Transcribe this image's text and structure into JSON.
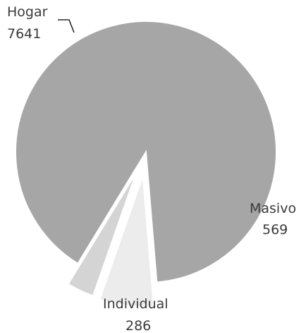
{
  "chart_data": {
    "type": "pie",
    "exploded": true,
    "slices": [
      {
        "label": "Hogar",
        "value": 7641,
        "color": "#a6a6a6"
      },
      {
        "label": "Masivo",
        "value": 569,
        "color": "#ececec"
      },
      {
        "label": "Individual",
        "value": 286,
        "color": "#d4d4d4"
      }
    ],
    "data_labels": [
      "Hogar",
      "7641",
      "Masivo",
      "569",
      "Individual",
      "286"
    ],
    "legend": false,
    "grid": false
  }
}
